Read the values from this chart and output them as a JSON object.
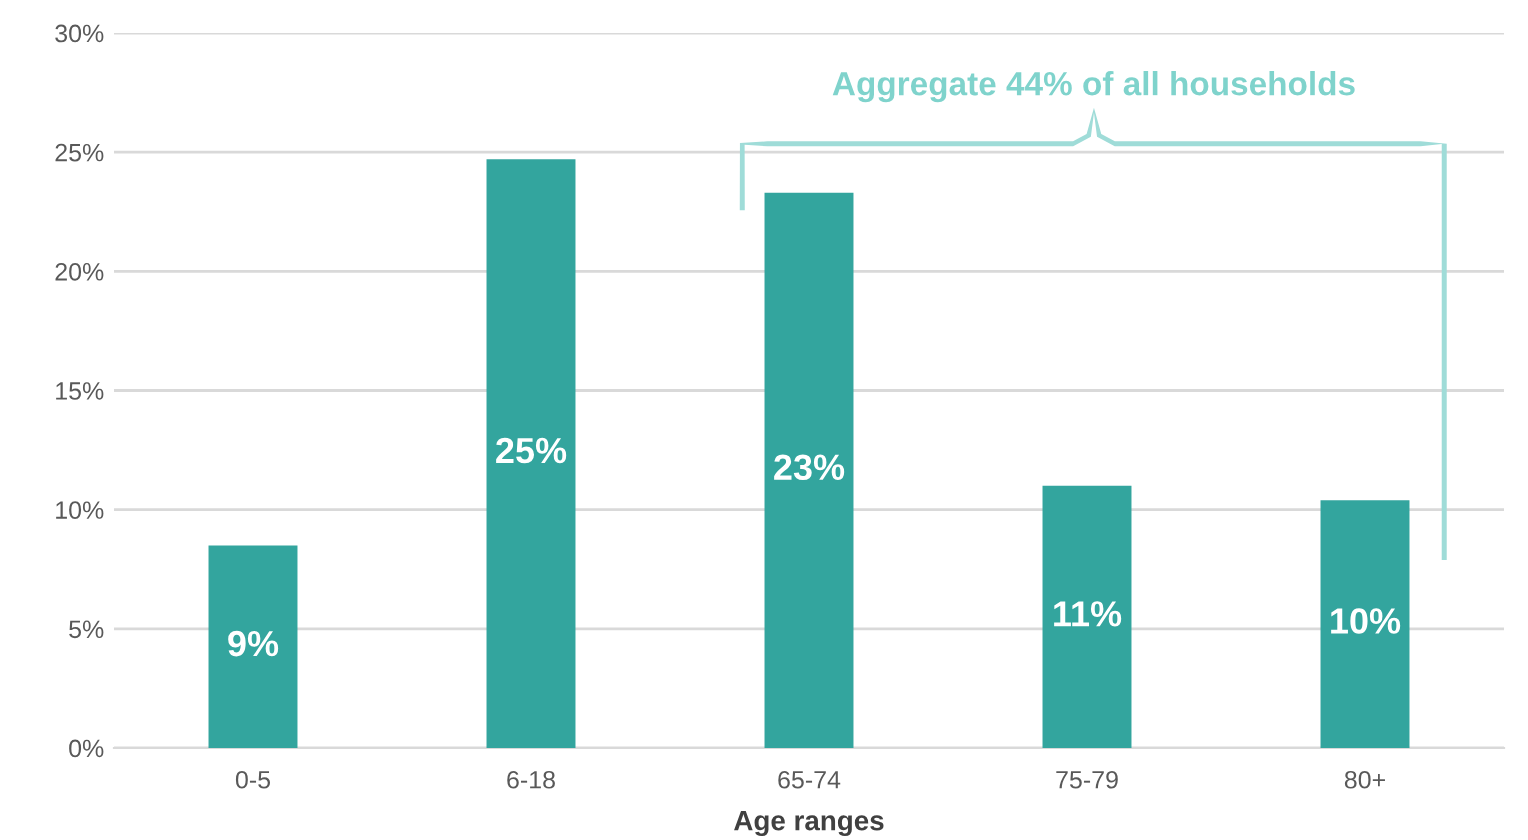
{
  "chart_data": {
    "type": "bar",
    "xlabel": "Age ranges",
    "categories": [
      "0-5",
      "6-18",
      "65-74",
      "75-79",
      "80+"
    ],
    "values": [
      8.5,
      24.7,
      23.3,
      11.0,
      10.4
    ],
    "value_labels": [
      "9%",
      "25%",
      "23%",
      "11%",
      "10%"
    ],
    "color": "#33a59e",
    "ylim": [
      0,
      30
    ],
    "yticks": [
      {
        "value": 0,
        "label": "0%"
      },
      {
        "value": 5,
        "label": "5%"
      },
      {
        "value": 10,
        "label": "10%"
      },
      {
        "value": 15,
        "label": "15%"
      },
      {
        "value": 20,
        "label": "20%"
      },
      {
        "value": 25,
        "label": "25%"
      },
      {
        "value": 30,
        "label": "30%"
      }
    ],
    "grid": "y",
    "legend": false,
    "annotations": [
      "Aggregate 44% of all households"
    ]
  }
}
